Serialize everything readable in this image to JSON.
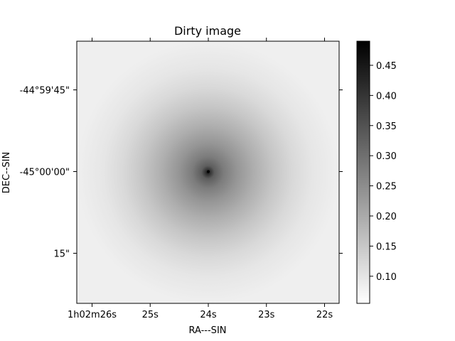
{
  "chart_data": {
    "type": "heatmap",
    "title": "Dirty image",
    "xlabel": "RA---SIN",
    "ylabel": "DEC--SIN",
    "colormap": "gray_r",
    "x_ticks": [
      {
        "value_s": 26,
        "label": "1h02m26s"
      },
      {
        "value_s": 25,
        "label": "25s"
      },
      {
        "value_s": 24,
        "label": "24s"
      },
      {
        "value_s": 23,
        "label": "23s"
      },
      {
        "value_s": 22,
        "label": "22s"
      }
    ],
    "y_ticks": [
      {
        "value_arcsec": -15,
        "label": "-44°59'45\""
      },
      {
        "value_arcsec": 0,
        "label": "-45°00'00\""
      },
      {
        "value_arcsec": 15,
        "label": "15\""
      }
    ],
    "colorbar": {
      "min": 0.055,
      "max": 0.49,
      "ticks": [
        0.1,
        0.15,
        0.2,
        0.25,
        0.3,
        0.35,
        0.4,
        0.45
      ],
      "tick_labels": [
        "0.10",
        "0.15",
        "0.20",
        "0.25",
        "0.30",
        "0.35",
        "0.40",
        "0.45"
      ]
    },
    "peak_value": 0.49,
    "background_value": 0.06,
    "peak_position": {
      "ra_s": 24,
      "dec_arcsec": 0
    }
  }
}
